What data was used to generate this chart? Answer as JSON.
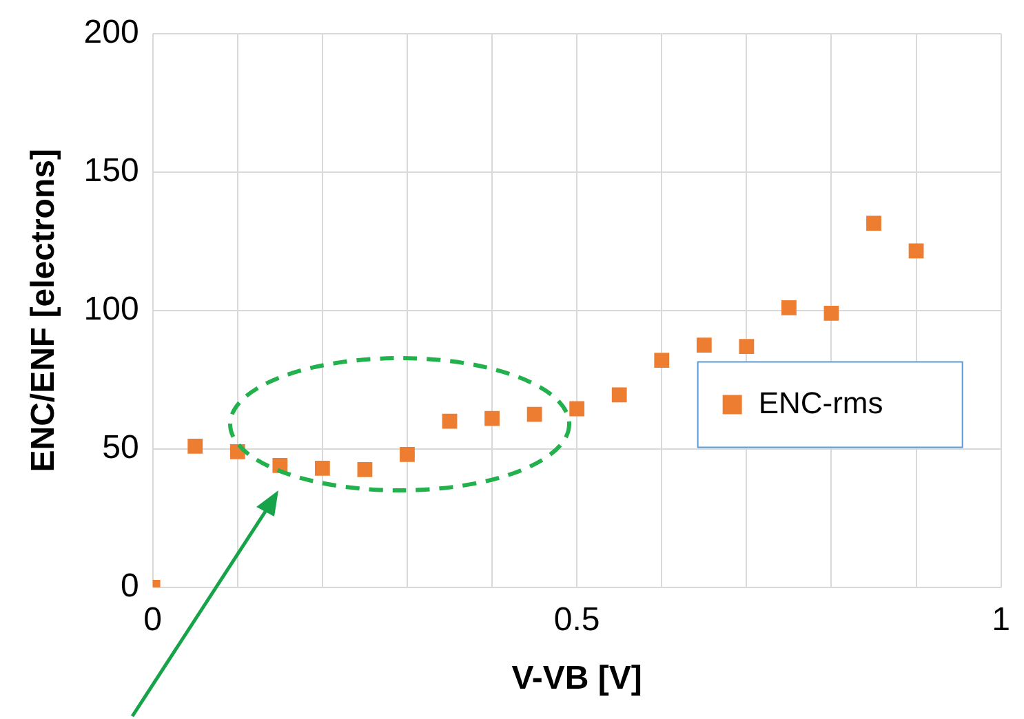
{
  "chart_data": {
    "type": "scatter",
    "xlabel": "V-VB [V]",
    "ylabel": "ENC/ENF [electrons]",
    "x": [
      0,
      0.05,
      0.1,
      0.15,
      0.2,
      0.25,
      0.3,
      0.35,
      0.4,
      0.45,
      0.5,
      0.55,
      0.6,
      0.65,
      0.7,
      0.75,
      0.8,
      0.85,
      0.9
    ],
    "series": [
      {
        "name": "ENC-rms",
        "color": "#ed7d31",
        "values": [
          0,
          51,
          49,
          44,
          43,
          42.5,
          48,
          60,
          61,
          62.5,
          64.5,
          69.5,
          82,
          87.5,
          87,
          101,
          99,
          131.5,
          121.5
        ]
      }
    ],
    "xlim": [
      0,
      1
    ],
    "xticks": [
      0,
      {
        "value": 0.1,
        "label": null
      },
      {
        "value": 0.2,
        "label": null
      },
      {
        "value": 0.3,
        "label": null
      },
      {
        "value": 0.4,
        "label": null
      },
      0.5,
      {
        "value": 0.6,
        "label": null
      },
      {
        "value": 0.7,
        "label": null
      },
      {
        "value": 0.8,
        "label": null
      },
      {
        "value": 0.9,
        "label": null
      },
      1
    ],
    "ylim": [
      0,
      200
    ],
    "yticks": [
      0,
      50,
      100,
      150,
      200
    ],
    "grid": true,
    "legend": "right",
    "marker": "square"
  }
}
